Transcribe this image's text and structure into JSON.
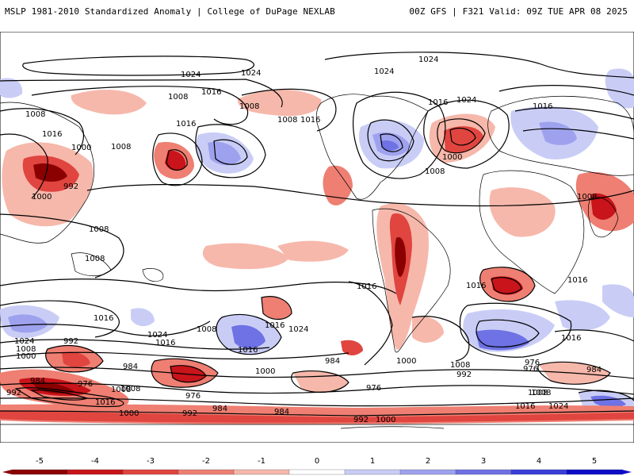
{
  "header": {
    "left_title": "MSLP 1981-2010 Standardized Anomaly | College of DuPage NEXLAB",
    "right_title": "00Z GFS | F321 Valid: 09Z TUE APR 08 2025"
  },
  "colorbar": {
    "ticks": [
      "-5",
      "-4",
      "-3",
      "-2",
      "-1",
      "0",
      "1",
      "2",
      "3",
      "4",
      "5"
    ],
    "colors": [
      "#8b0000",
      "#c8141a",
      "#e0453f",
      "#ee7f72",
      "#f6b8ab",
      "#ffffff",
      "#c9cdf6",
      "#9ea2ee",
      "#6e72e4",
      "#3a3ed8",
      "#0c0cc8"
    ]
  },
  "map": {
    "contour_labels": [
      "1024",
      "1024",
      "1024",
      "1024",
      "1024",
      "1016",
      "1016",
      "1016",
      "1016",
      "1016",
      "1016",
      "1008",
      "1008",
      "1008",
      "1008",
      "1008",
      "1008",
      "1008",
      "1008",
      "1008",
      "1000",
      "1000",
      "1000",
      "992",
      "992",
      "992",
      "992",
      "984",
      "984",
      "984",
      "984",
      "976",
      "976",
      "976",
      "976",
      "1024",
      "1024",
      "1024",
      "1016",
      "1016",
      "1016",
      "1016",
      "1016",
      "1016",
      "1016",
      "1016",
      "1008",
      "1008",
      "1008",
      "1008",
      "1008",
      "1000",
      "1000",
      "1000",
      "1000",
      "1000",
      "992",
      "992",
      "984",
      "984",
      "976",
      "1008",
      "1016",
      "1024",
      "1016",
      "1008"
    ]
  },
  "style": {
    "land_color": "#000000",
    "contour_color": "#000000",
    "negative_anomaly": "#e0453f",
    "positive_anomaly": "#6e72e4"
  }
}
